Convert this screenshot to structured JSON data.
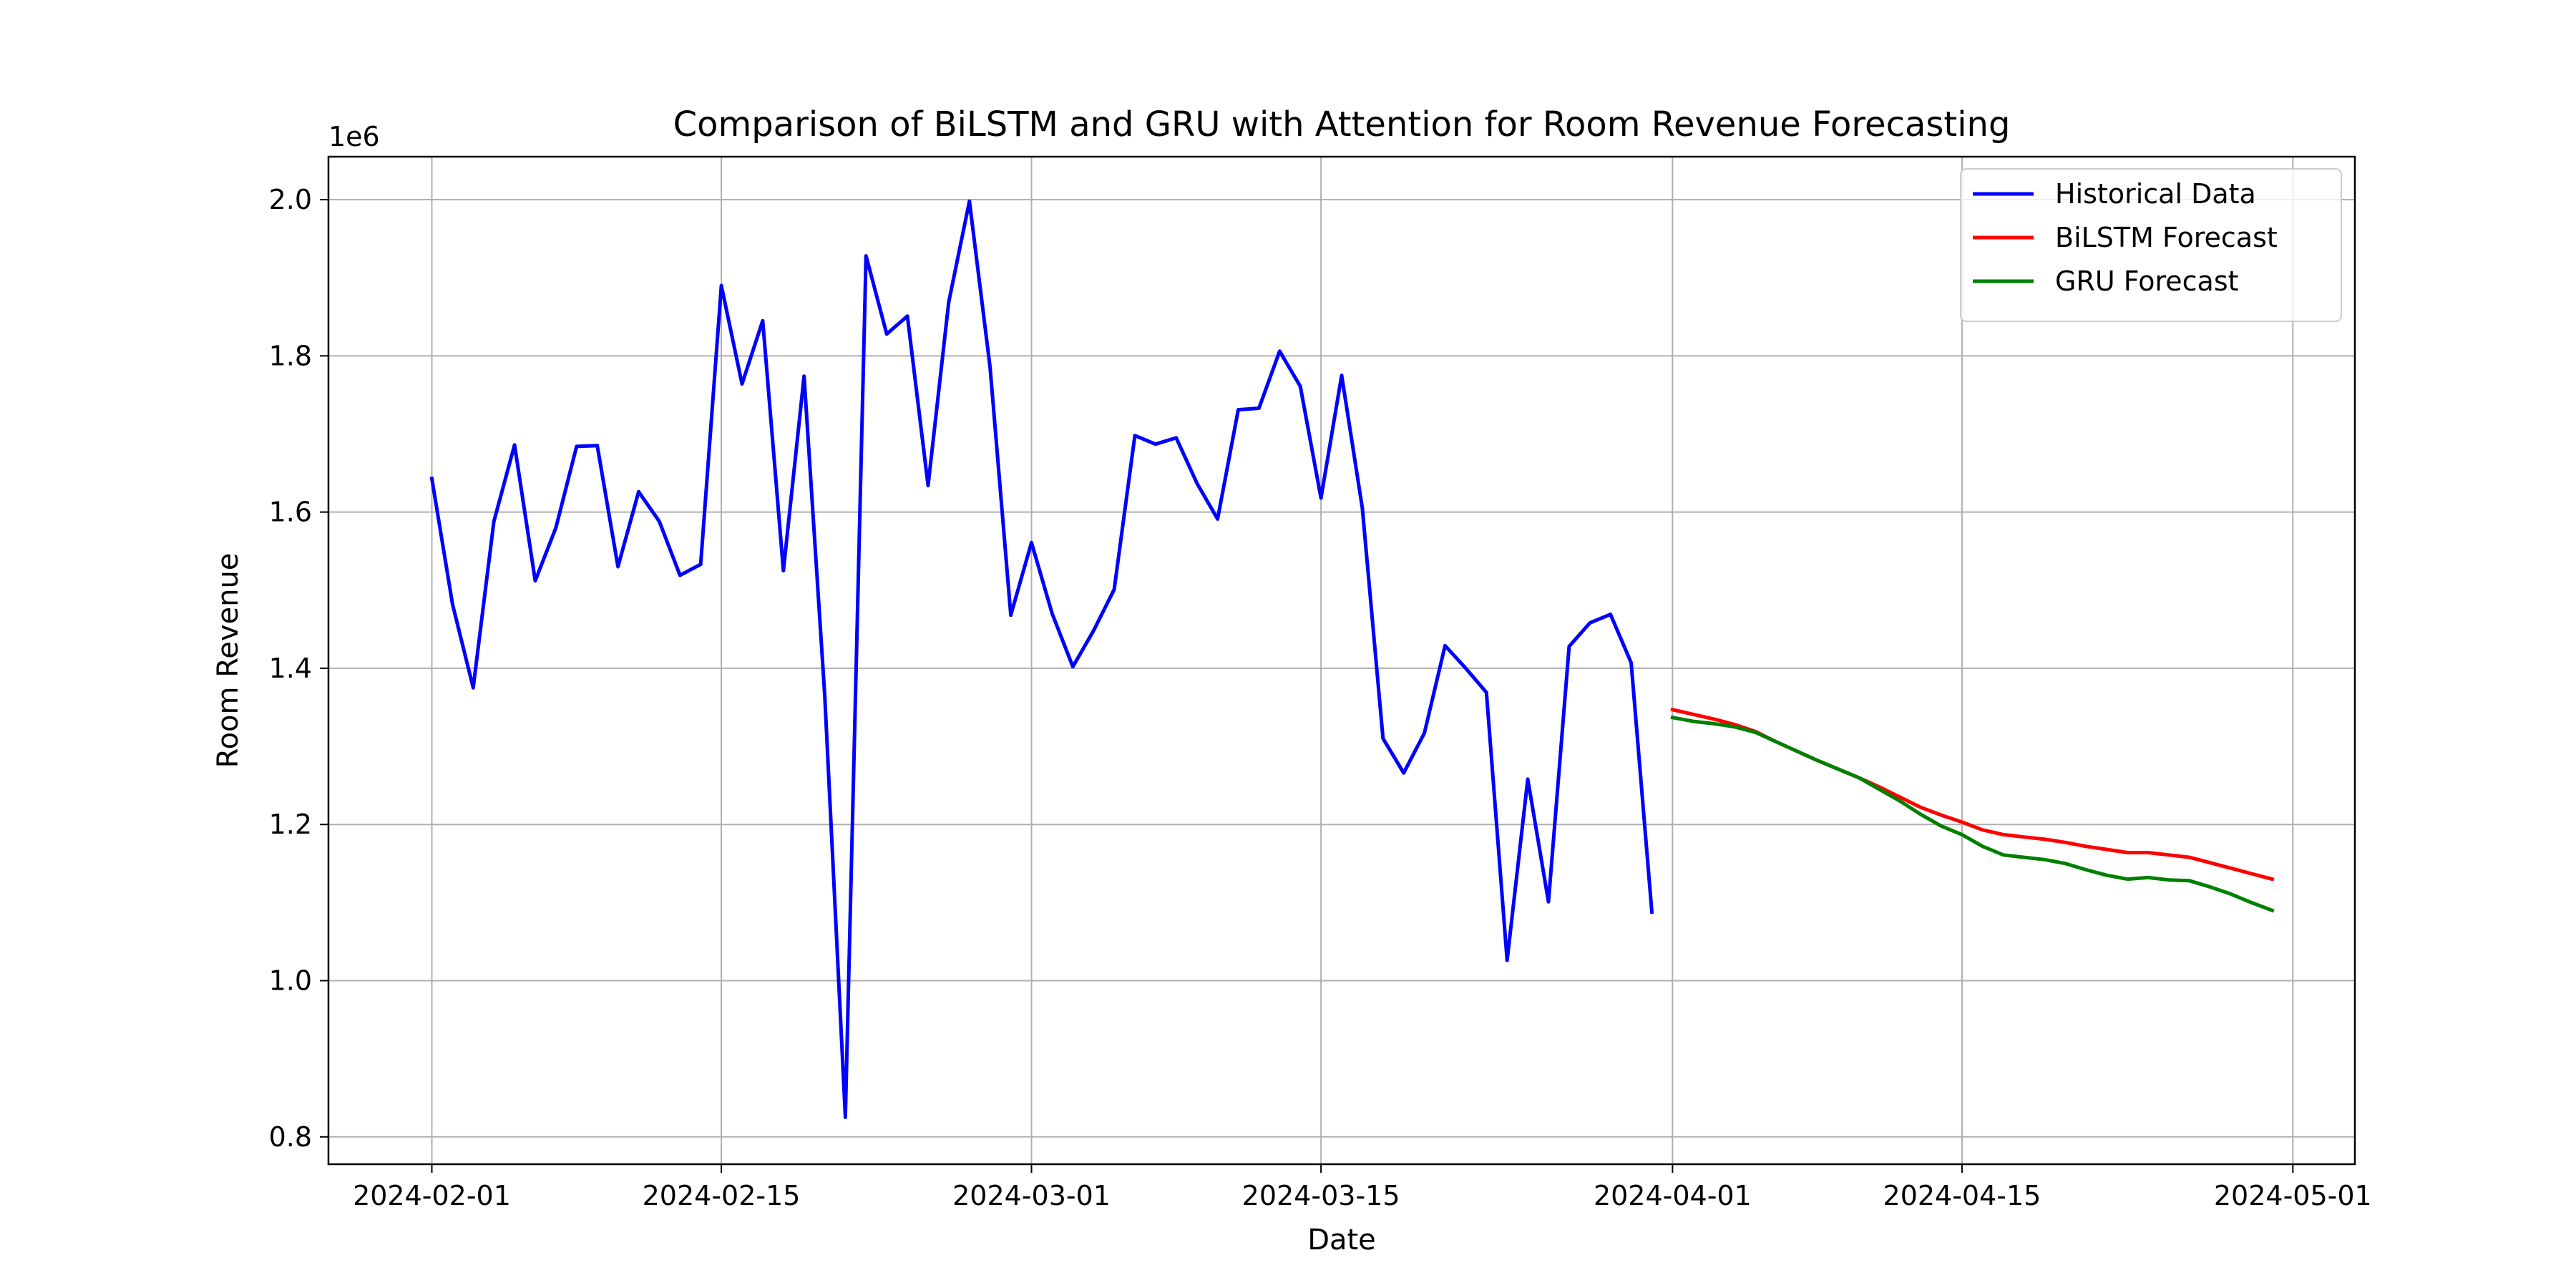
{
  "chart_data": {
    "type": "line",
    "title": "Comparison of BiLSTM and GRU with Attention for Room Revenue Forecasting",
    "xlabel": "Date",
    "ylabel": "Room Revenue",
    "y_offset_label": "1e6",
    "xlim": [
      "2024-01-27",
      "2024-05-01"
    ],
    "ylim": [
      0.765,
      2.055
    ],
    "grid": true,
    "legend_position": "top-right",
    "x_ticks": [
      {
        "date": "2024-02-01",
        "label": "2024-02-01"
      },
      {
        "date": "2024-02-15",
        "label": "2024-02-15"
      },
      {
        "date": "2024-03-01",
        "label": "2024-03-01"
      },
      {
        "date": "2024-03-15",
        "label": "2024-03-15"
      },
      {
        "date": "2024-04-01",
        "label": "2024-04-01"
      },
      {
        "date": "2024-04-15",
        "label": "2024-04-15"
      },
      {
        "date": "2024-05-01",
        "label": "2024-05-01"
      }
    ],
    "y_ticks": [
      {
        "value": 0.8,
        "label": "0.8"
      },
      {
        "value": 1.0,
        "label": "1.0"
      },
      {
        "value": 1.2,
        "label": "1.2"
      },
      {
        "value": 1.4,
        "label": "1.4"
      },
      {
        "value": 1.6,
        "label": "1.6"
      },
      {
        "value": 1.8,
        "label": "1.8"
      },
      {
        "value": 2.0,
        "label": "2.0"
      }
    ],
    "series": [
      {
        "name": "Historical Data",
        "color": "#0000ff",
        "start_date": "2024-02-01",
        "values": [
          1.643,
          1.482,
          1.375,
          1.588,
          1.686,
          1.512,
          1.58,
          1.684,
          1.685,
          1.53,
          1.626,
          1.588,
          1.519,
          1.533,
          1.89,
          1.764,
          1.845,
          1.525,
          1.774,
          1.365,
          0.825,
          1.928,
          1.828,
          1.851,
          1.634,
          1.869,
          1.998,
          1.785,
          1.468,
          1.561,
          1.47,
          1.402,
          1.448,
          1.501,
          1.698,
          1.687,
          1.695,
          1.637,
          1.591,
          1.731,
          1.733,
          1.806,
          1.761,
          1.618,
          1.775,
          1.605,
          1.31,
          1.266,
          1.317,
          1.429,
          1.4,
          1.369,
          1.026,
          1.258,
          1.101,
          1.428,
          1.458,
          1.469,
          1.407,
          1.088
        ]
      },
      {
        "name": "BiLSTM Forecast",
        "color": "#ff0000",
        "start_date": "2024-04-01",
        "values": [
          1.347,
          1.341,
          1.335,
          1.328,
          1.319,
          1.306,
          1.294,
          1.282,
          1.271,
          1.26,
          1.248,
          1.235,
          1.222,
          1.212,
          1.203,
          1.193,
          1.187,
          1.184,
          1.181,
          1.177,
          1.172,
          1.168,
          1.164,
          1.164,
          1.161,
          1.158,
          1.151,
          1.144,
          1.137,
          1.13
        ]
      },
      {
        "name": "GRU Forecast",
        "color": "#008000",
        "start_date": "2024-04-01",
        "values": [
          1.337,
          1.332,
          1.329,
          1.325,
          1.318,
          1.306,
          1.294,
          1.282,
          1.271,
          1.26,
          1.245,
          1.23,
          1.213,
          1.198,
          1.187,
          1.172,
          1.161,
          1.158,
          1.155,
          1.15,
          1.142,
          1.135,
          1.13,
          1.132,
          1.129,
          1.128,
          1.12,
          1.111,
          1.1,
          1.09
        ]
      }
    ]
  }
}
